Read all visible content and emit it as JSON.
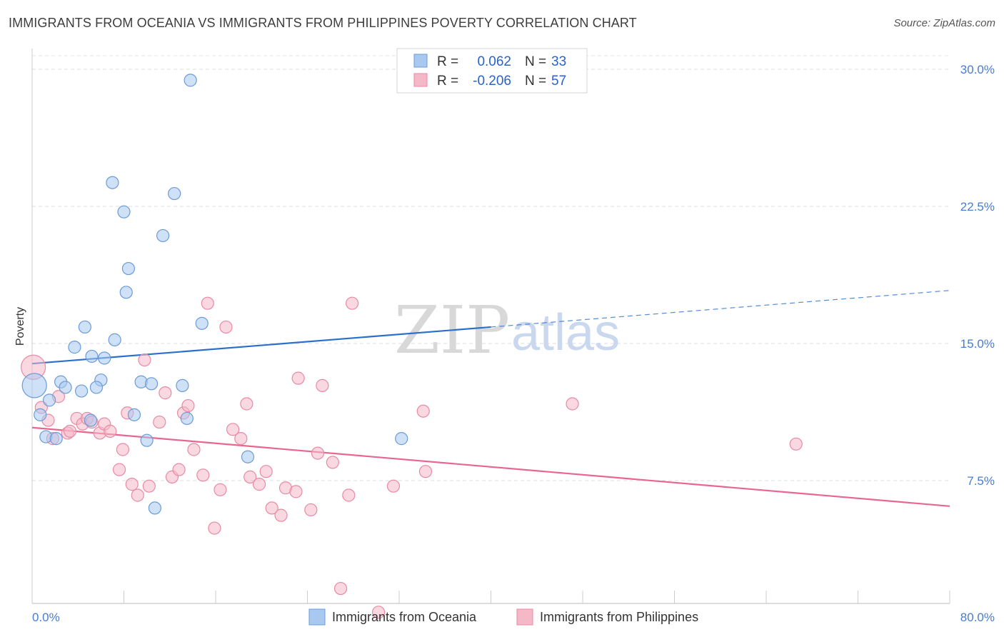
{
  "title": "IMMIGRANTS FROM OCEANIA VS IMMIGRANTS FROM PHILIPPINES POVERTY CORRELATION CHART",
  "source": "Source: ZipAtlas.com",
  "watermark": {
    "zip": "ZIP",
    "atlas": "atlas"
  },
  "legend": {
    "rows": [
      {
        "r_label": "R =",
        "r_value": "0.062",
        "n_label": "N =",
        "n_value": "33",
        "color": "#a8c8f0"
      },
      {
        "r_label": "R =",
        "r_value": "-0.206",
        "n_label": "N =",
        "n_value": "57",
        "color": "#f5b8c8"
      }
    ]
  },
  "chart_data": {
    "type": "scatter",
    "title": "IMMIGRANTS FROM OCEANIA VS IMMIGRANTS FROM PHILIPPINES POVERTY CORRELATION CHART",
    "xlabel": "",
    "ylabel": "Poverty",
    "xlim": [
      0,
      80
    ],
    "ylim": [
      0,
      31
    ],
    "x_tick_labels": [
      "0.0%",
      "80.0%"
    ],
    "y_ticks": [
      7.5,
      15.0,
      22.5,
      30.0
    ],
    "y_tick_labels": [
      "7.5%",
      "15.0%",
      "22.5%",
      "30.0%"
    ],
    "grid": true,
    "legend_position": "top-center",
    "series": [
      {
        "name": "Immigrants from Oceania",
        "color": "#a8c8f0",
        "stroke": "#6b9bd8",
        "trend": {
          "x0": 0,
          "y0": 13.9,
          "x1": 40,
          "y1": 15.9,
          "dash_to_x": 80,
          "dash_to_y": 17.9,
          "color": "#2b6fce"
        },
        "points": [
          [
            13.8,
            29.4
          ],
          [
            7.0,
            23.8
          ],
          [
            12.4,
            23.2
          ],
          [
            8.0,
            22.2
          ],
          [
            11.4,
            20.9
          ],
          [
            8.4,
            19.1
          ],
          [
            8.2,
            17.8
          ],
          [
            14.8,
            16.1
          ],
          [
            4.6,
            15.9
          ],
          [
            7.2,
            15.2
          ],
          [
            3.7,
            14.8
          ],
          [
            5.2,
            14.3
          ],
          [
            6.3,
            14.2
          ],
          [
            6.0,
            13.0
          ],
          [
            0.2,
            12.7
          ],
          [
            2.5,
            12.9
          ],
          [
            9.5,
            12.9
          ],
          [
            10.4,
            12.8
          ],
          [
            13.1,
            12.7
          ],
          [
            2.9,
            12.6
          ],
          [
            5.6,
            12.6
          ],
          [
            4.3,
            12.4
          ],
          [
            1.5,
            11.9
          ],
          [
            0.7,
            11.1
          ],
          [
            8.9,
            11.1
          ],
          [
            5.1,
            10.8
          ],
          [
            13.5,
            10.9
          ],
          [
            1.2,
            9.9
          ],
          [
            2.1,
            9.8
          ],
          [
            10.0,
            9.7
          ],
          [
            32.2,
            9.8
          ],
          [
            18.8,
            8.8
          ],
          [
            10.7,
            6.0
          ]
        ]
      },
      {
        "name": "Immigrants from Philippines",
        "color": "#f5b8c8",
        "stroke": "#e88aa4",
        "trend": {
          "x0": 0,
          "y0": 10.4,
          "x1": 80,
          "y1": 6.1,
          "color": "#e8668f"
        },
        "points": [
          [
            0.1,
            13.7
          ],
          [
            0.8,
            11.5
          ],
          [
            1.4,
            10.8
          ],
          [
            2.3,
            12.1
          ],
          [
            1.8,
            9.8
          ],
          [
            3.1,
            10.1
          ],
          [
            3.3,
            10.2
          ],
          [
            3.9,
            10.9
          ],
          [
            4.4,
            10.6
          ],
          [
            4.8,
            10.9
          ],
          [
            5.2,
            10.7
          ],
          [
            5.9,
            10.1
          ],
          [
            6.3,
            10.6
          ],
          [
            6.8,
            10.2
          ],
          [
            7.6,
            8.1
          ],
          [
            7.9,
            9.2
          ],
          [
            8.3,
            11.2
          ],
          [
            8.7,
            7.3
          ],
          [
            9.2,
            6.7
          ],
          [
            9.8,
            14.1
          ],
          [
            10.2,
            7.2
          ],
          [
            11.1,
            10.7
          ],
          [
            11.6,
            12.3
          ],
          [
            12.2,
            7.7
          ],
          [
            12.8,
            8.1
          ],
          [
            13.2,
            11.2
          ],
          [
            13.6,
            11.6
          ],
          [
            14.1,
            9.2
          ],
          [
            14.9,
            7.8
          ],
          [
            15.3,
            17.2
          ],
          [
            15.9,
            4.9
          ],
          [
            16.4,
            7.0
          ],
          [
            16.9,
            15.9
          ],
          [
            17.5,
            10.3
          ],
          [
            18.2,
            9.8
          ],
          [
            18.7,
            11.7
          ],
          [
            19.0,
            7.7
          ],
          [
            19.8,
            7.3
          ],
          [
            20.4,
            8.0
          ],
          [
            20.9,
            6.0
          ],
          [
            21.7,
            5.6
          ],
          [
            22.1,
            7.1
          ],
          [
            23.0,
            6.9
          ],
          [
            23.2,
            13.1
          ],
          [
            24.3,
            5.9
          ],
          [
            24.9,
            9.0
          ],
          [
            25.3,
            12.7
          ],
          [
            26.2,
            8.5
          ],
          [
            26.9,
            1.6
          ],
          [
            27.6,
            6.7
          ],
          [
            27.9,
            17.2
          ],
          [
            30.2,
            0.3
          ],
          [
            31.5,
            7.2
          ],
          [
            34.1,
            11.3
          ],
          [
            34.3,
            8.0
          ],
          [
            47.1,
            11.7
          ],
          [
            66.6,
            9.5
          ]
        ]
      }
    ]
  }
}
